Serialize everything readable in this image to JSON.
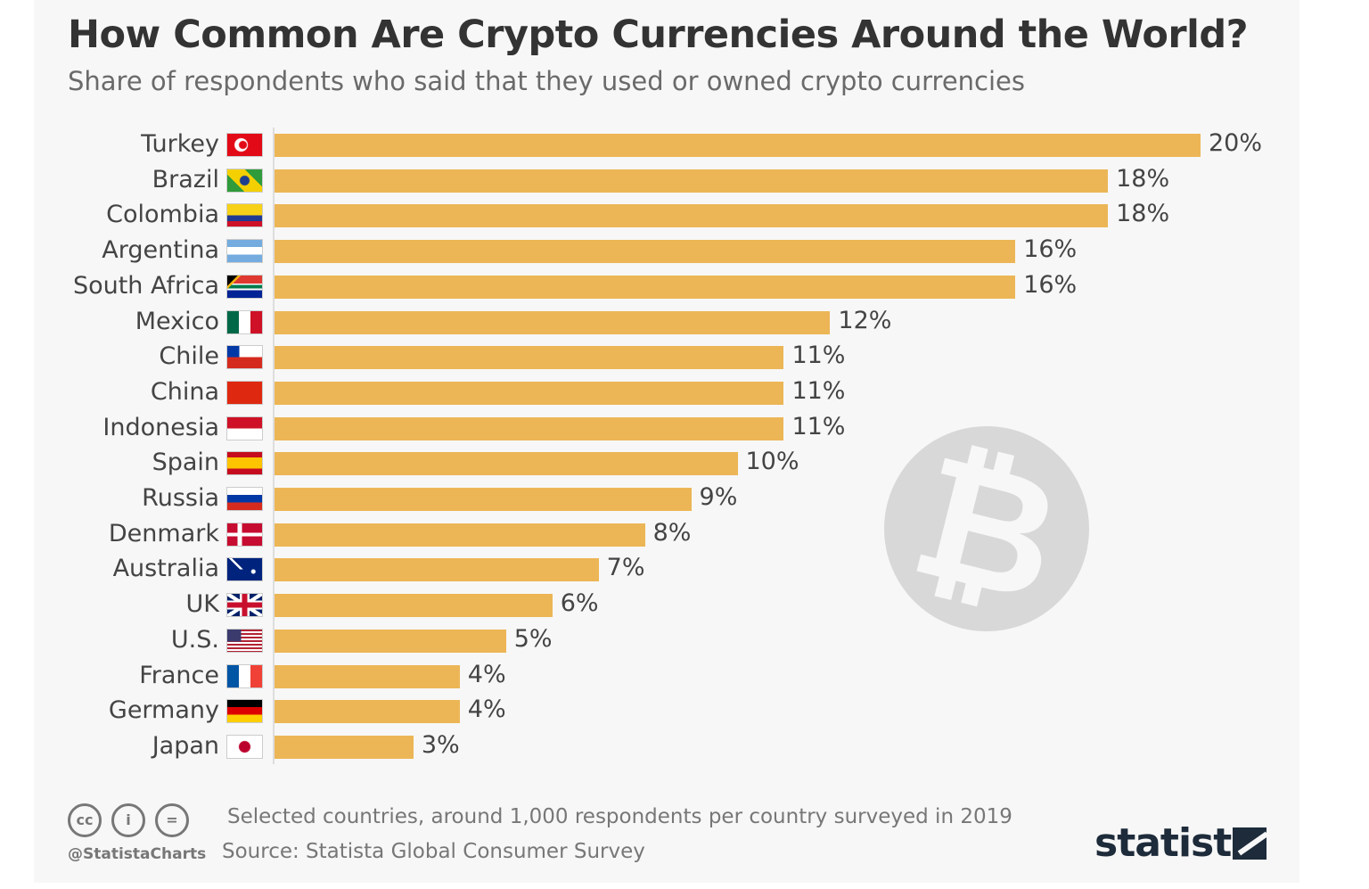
{
  "title": "How Common Are Crypto Currencies Around the World?",
  "subtitle": "Share of respondents who said that they used or owned crypto currencies",
  "chart_data": {
    "type": "bar",
    "orientation": "horizontal",
    "categories": [
      "Turkey",
      "Brazil",
      "Colombia",
      "Argentina",
      "South Africa",
      "Mexico",
      "Chile",
      "China",
      "Indonesia",
      "Spain",
      "Russia",
      "Denmark",
      "Australia",
      "UK",
      "U.S.",
      "France",
      "Germany",
      "Japan"
    ],
    "values": [
      20,
      18,
      18,
      16,
      16,
      12,
      11,
      11,
      11,
      10,
      9,
      8,
      7,
      6,
      5,
      4,
      4,
      3
    ],
    "value_labels": [
      "20%",
      "18%",
      "18%",
      "16%",
      "16%",
      "12%",
      "11%",
      "11%",
      "11%",
      "10%",
      "9%",
      "8%",
      "7%",
      "6%",
      "5%",
      "4%",
      "4%",
      "3%"
    ],
    "unit": "%",
    "xlim": [
      0,
      20
    ],
    "grid": false,
    "bar_color": "#ecb656",
    "category_icons": [
      "flag-turkey",
      "flag-brazil",
      "flag-colombia",
      "flag-argentina",
      "flag-south-africa",
      "flag-mexico",
      "flag-chile",
      "flag-china",
      "flag-indonesia",
      "flag-spain",
      "flag-russia",
      "flag-denmark",
      "flag-australia",
      "flag-uk",
      "flag-us",
      "flag-france",
      "flag-germany",
      "flag-japan"
    ]
  },
  "decoration": {
    "icon": "bitcoin-icon",
    "glyph": "₿"
  },
  "footer": {
    "note": "Selected countries, around 1,000 respondents per country surveyed in 2019",
    "source": "Source: Statista Global Consumer Survey",
    "handle": "@StatistaCharts",
    "license_icons": [
      "cc-icon",
      "by-icon",
      "nd-icon"
    ],
    "logo": "statista"
  }
}
